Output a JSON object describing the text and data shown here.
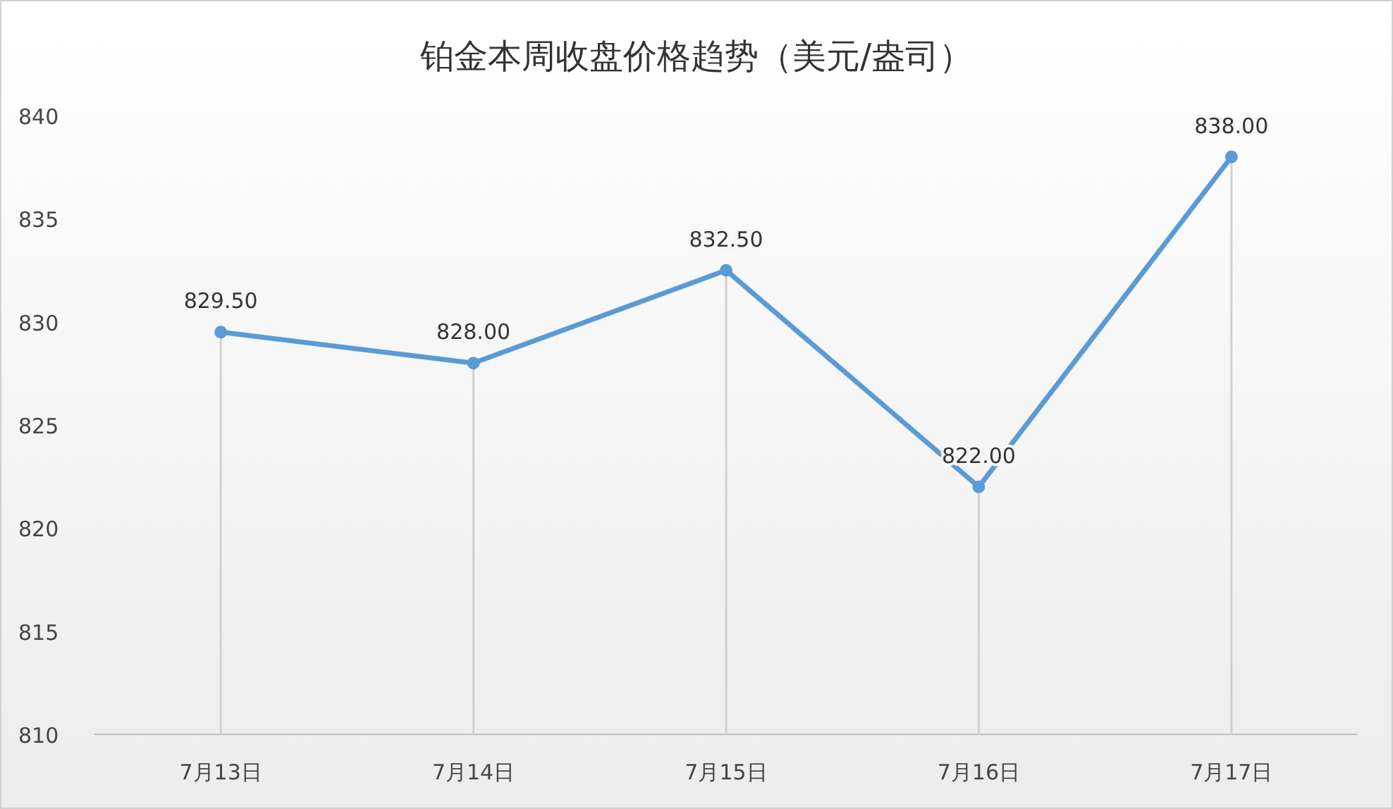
{
  "chart_data": {
    "type": "line",
    "title": "铂金本周收盘价格趋势（美元/盎司）",
    "categories": [
      "7月13日",
      "7月14日",
      "7月15日",
      "7月16日",
      "7月17日"
    ],
    "series": [
      {
        "color": "#5b9bd5",
        "values": [
          829.5,
          828.0,
          832.5,
          822.0,
          838.0
        ],
        "value_labels": [
          "829.50",
          "828.00",
          "832.50",
          "822.00",
          "838.00"
        ]
      }
    ],
    "ylim": [
      810,
      840
    ],
    "yticks": [
      810,
      815,
      820,
      825,
      830,
      835,
      840
    ],
    "grid": "x",
    "marker": "circle",
    "line_style": "solid"
  }
}
